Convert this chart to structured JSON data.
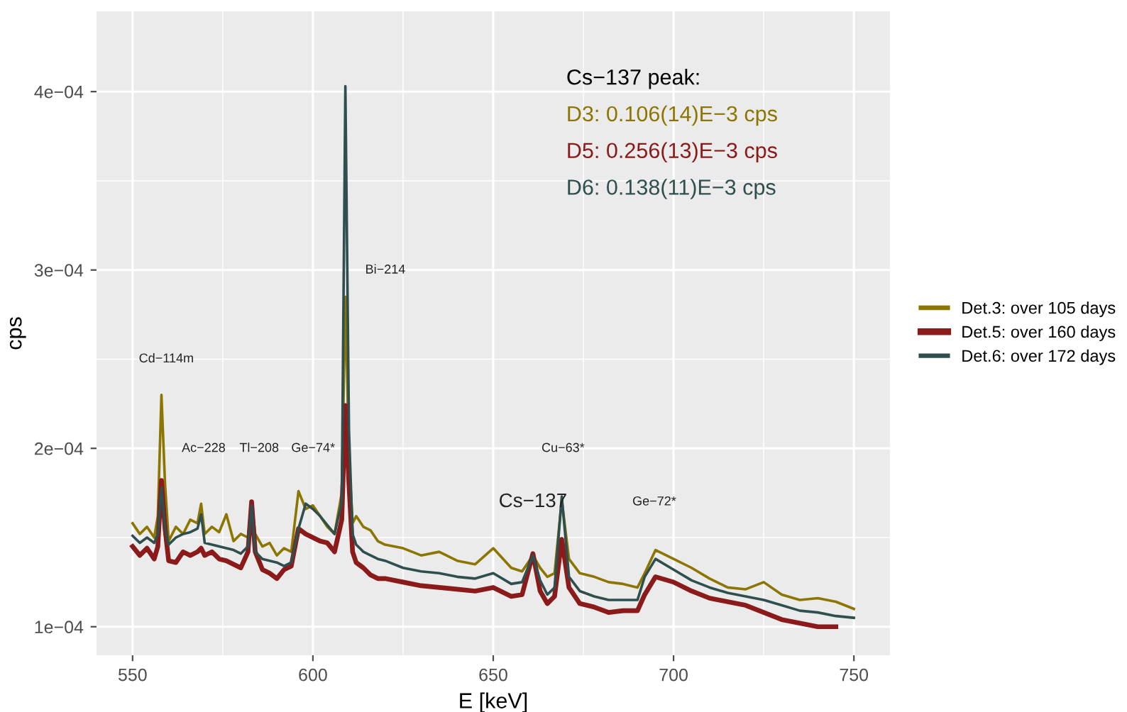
{
  "chart_data": {
    "type": "line",
    "xlabel": "E [keV]",
    "ylabel": "cps",
    "x": [
      550,
      552,
      554,
      556,
      557,
      558,
      559,
      560,
      562,
      564,
      566,
      568,
      569,
      570,
      572,
      574,
      576,
      578,
      580,
      582,
      583,
      584,
      586,
      588,
      590,
      592,
      594,
      596,
      598,
      600,
      602,
      604,
      606,
      608,
      609,
      610,
      611,
      612,
      614,
      616,
      618,
      620,
      625,
      630,
      635,
      640,
      645,
      650,
      655,
      658,
      661,
      663,
      665,
      667,
      669,
      671,
      674,
      678,
      682,
      686,
      690,
      692,
      695,
      700,
      705,
      710,
      715,
      720,
      725,
      730,
      735,
      740,
      745,
      750
    ],
    "series": [
      {
        "name": "Det.3: over 105 days",
        "color": "#8c7500",
        "values": [
          0.000158,
          0.000152,
          0.000156,
          0.00015,
          0.000162,
          0.00023,
          0.00018,
          0.000148,
          0.000156,
          0.000152,
          0.00016,
          0.000158,
          0.000169,
          0.000152,
          0.000156,
          0.000153,
          0.000163,
          0.000148,
          0.000152,
          0.00015,
          0.00017,
          0.000152,
          0.000145,
          0.000147,
          0.00014,
          0.000144,
          0.000142,
          0.000176,
          0.000166,
          0.000168,
          0.000162,
          0.000156,
          0.000152,
          0.000175,
          0.000285,
          0.000195,
          0.000158,
          0.000162,
          0.000156,
          0.000154,
          0.000148,
          0.000146,
          0.000144,
          0.00014,
          0.000142,
          0.000137,
          0.000135,
          0.000144,
          0.000133,
          0.000131,
          0.00014,
          0.000133,
          0.000128,
          0.00013,
          0.000171,
          0.000138,
          0.00013,
          0.000128,
          0.000125,
          0.000124,
          0.000122,
          0.00013,
          0.000143,
          0.000138,
          0.000133,
          0.000127,
          0.000122,
          0.000121,
          0.000125,
          0.000118,
          0.000115,
          0.000116,
          0.000114,
          0.00011
        ]
      },
      {
        "name": "Det.5: over 160 days",
        "color": "#8b1a1a",
        "values": [
          0.000145,
          0.00014,
          0.000144,
          0.000138,
          0.000145,
          0.000182,
          0.000155,
          0.000137,
          0.000136,
          0.000142,
          0.00014,
          0.000142,
          0.000144,
          0.00014,
          0.000142,
          0.000138,
          0.000137,
          0.000135,
          0.000133,
          0.000142,
          0.00017,
          0.000142,
          0.000132,
          0.00013,
          0.000127,
          0.000132,
          0.000134,
          0.000155,
          0.000152,
          0.00015,
          0.000148,
          0.000147,
          0.000142,
          0.00016,
          0.000224,
          0.00018,
          0.000142,
          0.000136,
          0.000133,
          0.000129,
          0.000127,
          0.000127,
          0.000125,
          0.000123,
          0.000122,
          0.000121,
          0.00012,
          0.000122,
          0.000117,
          0.000118,
          0.000141,
          0.00012,
          0.000113,
          0.000117,
          0.000149,
          0.000122,
          0.000113,
          0.000111,
          0.000108,
          0.000109,
          0.000109,
          0.000118,
          0.000128,
          0.000125,
          0.00012,
          0.000116,
          0.000114,
          0.000112,
          0.000108,
          0.000104,
          0.000102,
          0.0001,
          0.0001,
          null
        ]
      },
      {
        "name": "Det.6: over 172 days",
        "color": "#2f4f4f",
        "values": [
          0.000151,
          0.000147,
          0.00015,
          0.000147,
          0.000152,
          0.000178,
          0.000155,
          0.000146,
          0.00015,
          0.000152,
          0.000153,
          0.000155,
          0.000163,
          0.000147,
          0.000146,
          0.000145,
          0.000144,
          0.000143,
          0.000141,
          0.000145,
          0.000168,
          0.000142,
          0.000138,
          0.000137,
          0.000136,
          0.000134,
          0.000136,
          0.000155,
          0.000169,
          0.000166,
          0.000162,
          0.000157,
          0.000152,
          0.00017,
          0.000403,
          0.00021,
          0.000152,
          0.000146,
          0.000142,
          0.00014,
          0.000138,
          0.000137,
          0.000133,
          0.000131,
          0.00013,
          0.000128,
          0.000127,
          0.00013,
          0.000124,
          0.000125,
          0.00014,
          0.000126,
          0.000118,
          0.000122,
          0.000173,
          0.000128,
          0.00012,
          0.000117,
          0.000115,
          0.000115,
          0.000115,
          0.000128,
          0.000138,
          0.000132,
          0.000126,
          0.000122,
          0.000119,
          0.000117,
          0.000115,
          0.000112,
          0.000109,
          0.000108,
          0.000106,
          0.000105
        ]
      }
    ],
    "xlim": [
      540,
      760
    ],
    "xticks": [
      550,
      600,
      650,
      700,
      750
    ],
    "ylim": [
      8.4e-05,
      0.000445
    ],
    "yticks": [
      {
        "value": 0.0001,
        "label": "1e−04"
      },
      {
        "value": 0.0002,
        "label": "2e−04"
      },
      {
        "value": 0.0003,
        "label": "3e−04"
      },
      {
        "value": 0.0004,
        "label": "4e−04"
      }
    ],
    "annotations": [
      "Cd−114m",
      "Ac−228",
      "Tl−208",
      "Ge−74*",
      "Bi−214",
      "Cu−63*",
      "Cs−137",
      "Ge−72*",
      "Cs−137 peak:",
      "D3: 0.106(14)E−3 cps",
      "D5: 0.256(13)E−3 cps",
      "D6: 0.138(11)E−3 cps"
    ],
    "grid": true,
    "legend": "right",
    "line_style": "solid",
    "marker": "none"
  }
}
